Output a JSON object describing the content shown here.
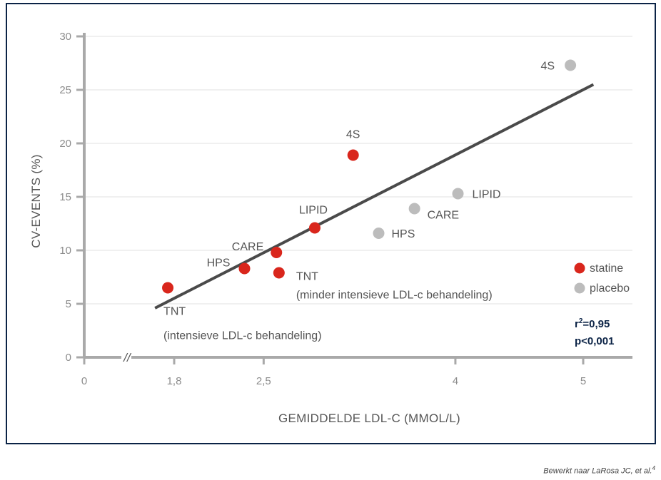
{
  "colors": {
    "frame": "#0b2346",
    "statine": "#d9261c",
    "placebo": "#bcbcbc",
    "trendline": "#4a4a4a",
    "axis": "#a9a9a9",
    "grid": "#e2e2e2"
  },
  "chart_data": {
    "type": "scatter",
    "title": "",
    "xlabel": "GEMIDDELDE LDL-C (MMOL/L)",
    "ylabel": "CV-EVENTS  (%)",
    "xlim": [
      0,
      5.2
    ],
    "ylim": [
      0,
      30
    ],
    "x_axis_break": true,
    "x_axis_break_symbol": "//",
    "xticks": [
      {
        "value": 0,
        "label": "0"
      },
      {
        "value": 1.8,
        "label": "1,8"
      },
      {
        "value": 2.5,
        "label": "2,5"
      },
      {
        "value": 4,
        "label": "4"
      },
      {
        "value": 5,
        "label": "5"
      }
    ],
    "yticks": [
      {
        "value": 0,
        "label": "0"
      },
      {
        "value": 5,
        "label": "5"
      },
      {
        "value": 10,
        "label": "10"
      },
      {
        "value": 15,
        "label": "15"
      },
      {
        "value": 20,
        "label": "20"
      },
      {
        "value": 25,
        "label": "25"
      },
      {
        "value": 30,
        "label": "30"
      }
    ],
    "grid": true,
    "series": [
      {
        "name": "statine",
        "points": [
          {
            "x": 1.75,
            "y": 6.5,
            "label": "TNT",
            "sublabel": "(intensieve LDL-c behandeling)"
          },
          {
            "x": 2.35,
            "y": 8.3,
            "label": "HPS"
          },
          {
            "x": 2.6,
            "y": 9.8,
            "label": "CARE"
          },
          {
            "x": 2.62,
            "y": 7.9,
            "label": "TNT",
            "sublabel": "(minder intensieve LDL-c behandeling)"
          },
          {
            "x": 2.9,
            "y": 12.1,
            "label": "LIPID"
          },
          {
            "x": 3.2,
            "y": 18.9,
            "label": "4S"
          }
        ]
      },
      {
        "name": "placebo",
        "points": [
          {
            "x": 3.4,
            "y": 11.6,
            "label": "HPS"
          },
          {
            "x": 3.68,
            "y": 13.9,
            "label": "CARE"
          },
          {
            "x": 4.02,
            "y": 15.3,
            "label": "LIPID"
          },
          {
            "x": 4.9,
            "y": 27.3,
            "label": "4S"
          }
        ]
      }
    ],
    "trendline": {
      "x1": 1.65,
      "y1": 4.6,
      "x2": 5.08,
      "y2": 25.5
    },
    "legend": {
      "placement": "right",
      "entries": [
        {
          "label": "statine",
          "series": "statine"
        },
        {
          "label": "placebo",
          "series": "placebo"
        }
      ]
    },
    "annotations": {
      "r2_base": "r",
      "r2_exp": "2",
      "r2_value": "=0,95",
      "p_value": "p<0,001"
    }
  },
  "source": {
    "text": "Bewerkt naar LaRosa JC, et al.",
    "superscript": "4"
  }
}
